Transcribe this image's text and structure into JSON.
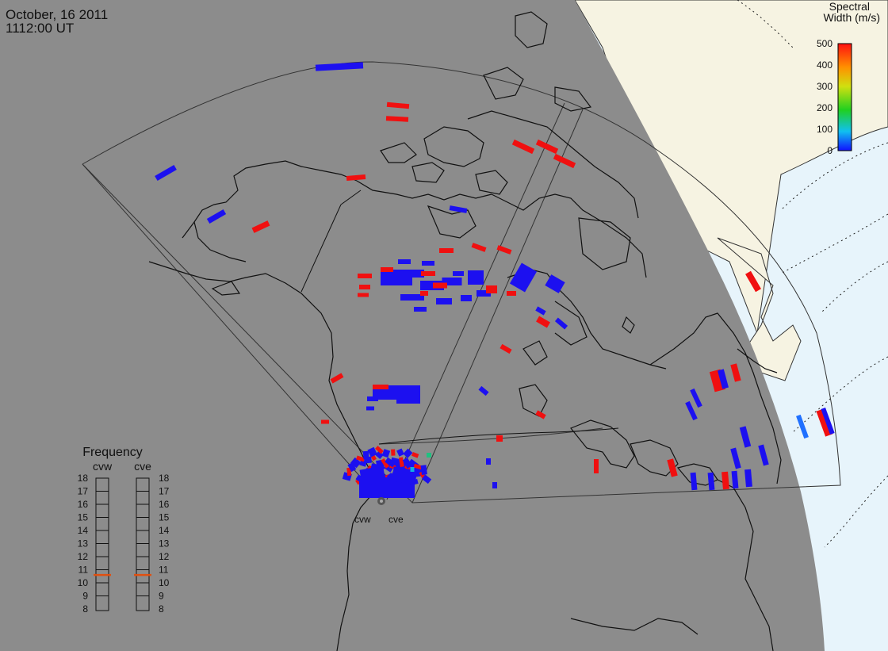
{
  "header": {
    "date": "October, 16 2011",
    "time": "1112:00 UT"
  },
  "colorbar": {
    "title_line1": "Spectral",
    "title_line2": "Width (m/s)",
    "ticks": [
      "500",
      "400",
      "300",
      "200",
      "100",
      "0"
    ]
  },
  "frequency_panel": {
    "title": "Frequency",
    "radars": [
      "cvw",
      "cve"
    ],
    "ticks": [
      "18",
      "17",
      "16",
      "15",
      "14",
      "13",
      "12",
      "11",
      "10",
      "9",
      "8"
    ],
    "cvw_value_mhz": 10.6,
    "cve_value_mhz": 10.6
  },
  "radar_labels": {
    "west": "cvw",
    "east": "cve"
  },
  "colors": {
    "night_gray": "#8c8c8c",
    "land_day": "#f6f3e2",
    "ocean_day": "#e7f4fb",
    "echo_low": "#1c10f0",
    "echo_high": "#f01010",
    "frequency_marker": "#e05010"
  }
}
